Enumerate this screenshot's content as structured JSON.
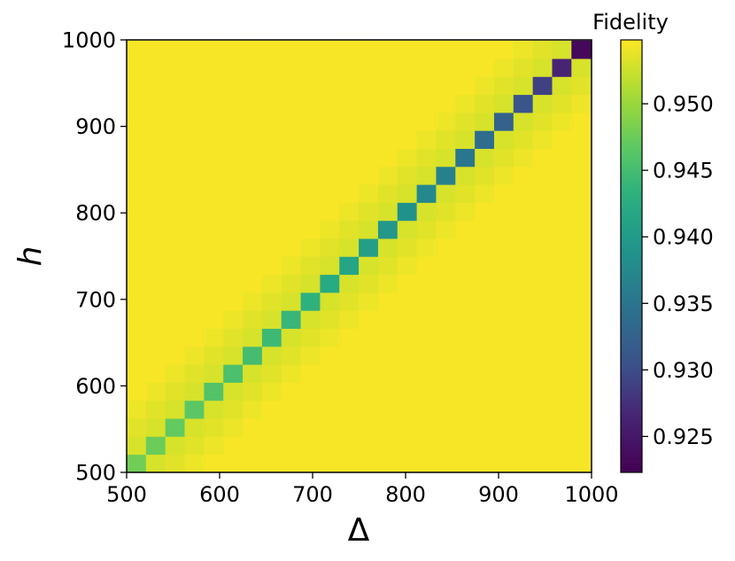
{
  "chart_data": {
    "type": "heatmap",
    "xlabel": "Δ",
    "ylabel": "h",
    "xlim": [
      500,
      1000
    ],
    "ylim": [
      500,
      1000
    ],
    "x_ticks": [
      500,
      600,
      700,
      800,
      900,
      1000
    ],
    "y_ticks": [
      500,
      600,
      700,
      800,
      900,
      1000
    ],
    "grid_size": 24,
    "cell_step": 20.8,
    "colorbar": {
      "title": "Fidelity",
      "min": 0.9223,
      "max": 0.9548,
      "ticks": [
        "0.925",
        "0.930",
        "0.935",
        "0.940",
        "0.945",
        "0.950"
      ],
      "tick_values": [
        0.925,
        0.93,
        0.935,
        0.94,
        0.945,
        0.95
      ],
      "colormap": "viridis"
    },
    "background_fidelity": 0.9545,
    "diagonal_fidelity": [
      0.9478,
      0.9475,
      0.947,
      0.9465,
      0.946,
      0.9455,
      0.945,
      0.9445,
      0.944,
      0.9433,
      0.9425,
      0.9415,
      0.9405,
      0.9395,
      0.9385,
      0.9375,
      0.9365,
      0.9352,
      0.934,
      0.9325,
      0.931,
      0.929,
      0.9265,
      0.9232
    ],
    "near_diagonal_fidelity": [
      0.953,
      0.9535,
      0.954
    ],
    "notes_cells": "diagonal cell i spans Δ,h ≈ 500 + i·20.8 to 500 + (i+1)·20.8; cells at distance 1, 2, 3 from diagonal take near_diagonal_fidelity[0..2]"
  }
}
